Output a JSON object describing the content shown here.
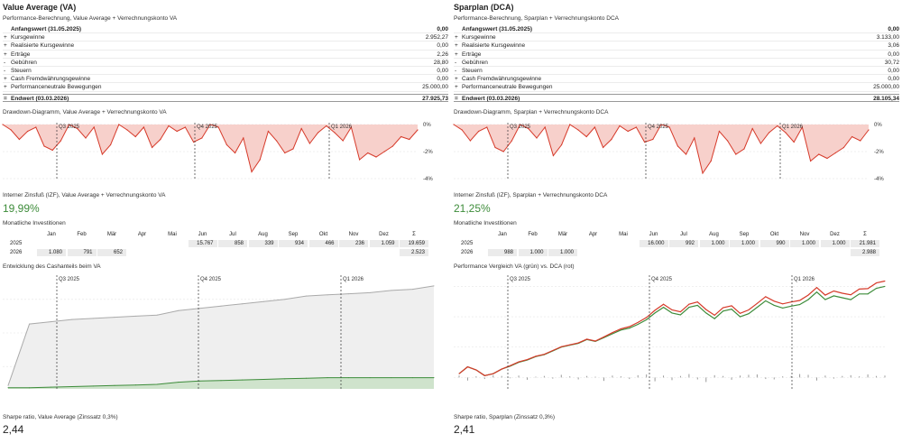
{
  "panels": [
    {
      "title": "Value Average (VA)",
      "perf_title": "Performance-Berechnung, Value Average + Verrechnungskonto VA",
      "start": {
        "label": "Anfangswert (31.05.2025)",
        "value": "0,00"
      },
      "rows": [
        {
          "op": "+",
          "label": "Kursgewinne",
          "value": "2.952,27"
        },
        {
          "op": "+",
          "label": "Realisierte Kursgewinne",
          "value": "0,00"
        },
        {
          "op": "+",
          "label": "Erträge",
          "value": "2,26"
        },
        {
          "op": "-",
          "label": "Gebühren",
          "value": "28,80"
        },
        {
          "op": "-",
          "label": "Steuern",
          "value": "0,00"
        },
        {
          "op": "+",
          "label": "Cash Fremdwährungsgewinne",
          "value": "0,00"
        },
        {
          "op": "+",
          "label": "Performanceneutrale Bewegungen",
          "value": "25.000,00"
        }
      ],
      "end": {
        "op": "=",
        "label": "Endwert (03.03.2026)",
        "value": "27.925,73"
      },
      "drawdown_title": "Drawdown-Diagramm, Value Average + Verrechnungskonto VA",
      "irr_title": "Interner Zinsfuß (IZF), Value Average + Verrechnungskonto VA",
      "irr_value": "19,99%",
      "monthly_title": "Monatliche Investitionen",
      "monthly": {
        "months": [
          "Jan",
          "Feb",
          "Mär",
          "Apr",
          "Mai",
          "Jun",
          "Jul",
          "Aug",
          "Sep",
          "Okt",
          "Nov",
          "Dez",
          "Σ"
        ],
        "rows": [
          {
            "year": "2025",
            "values": [
              "",
              "",
              "",
              "",
              "",
              "15.767",
              "858",
              "339",
              "934",
              "466",
              "236",
              "1.059",
              "19.659"
            ]
          },
          {
            "year": "2026",
            "values": [
              "1.080",
              "791",
              "652",
              "",
              "",
              "",
              "",
              "",
              "",
              "",
              "",
              "",
              "2.523"
            ]
          }
        ]
      },
      "second_chart_title": "Entwicklung des Cashanteils beim VA",
      "sharpe_title": "Sharpe ratio, Value Average (Zinssatz 0,3%)",
      "sharpe_value": "2,44"
    },
    {
      "title": "Sparplan (DCA)",
      "perf_title": "Performance-Berechnung, Sparplan + Verrechnungskonto DCA",
      "start": {
        "label": "Anfangswert (31.05.2025)",
        "value": "0,00"
      },
      "rows": [
        {
          "op": "+",
          "label": "Kursgewinne",
          "value": "3.133,00"
        },
        {
          "op": "+",
          "label": "Realisierte Kursgewinne",
          "value": "3,06"
        },
        {
          "op": "+",
          "label": "Erträge",
          "value": "0,00"
        },
        {
          "op": "-",
          "label": "Gebühren",
          "value": "30,72"
        },
        {
          "op": "-",
          "label": "Steuern",
          "value": "0,00"
        },
        {
          "op": "+",
          "label": "Cash Fremdwährungsgewinne",
          "value": "0,00"
        },
        {
          "op": "+",
          "label": "Performanceneutrale Bewegungen",
          "value": "25.000,00"
        }
      ],
      "end": {
        "op": "=",
        "label": "Endwert (03.03.2026)",
        "value": "28.105,34"
      },
      "drawdown_title": "Drawdown-Diagramm, Sparplan + Verrechnungskonto DCA",
      "irr_title": "Interner Zinsfuß (IZF), Sparplan + Verrechnungskonto DCA",
      "irr_value": "21,25%",
      "monthly_title": "Monatliche Investitionen",
      "monthly": {
        "months": [
          "Jan",
          "Feb",
          "Mär",
          "Apr",
          "Mai",
          "Jun",
          "Jul",
          "Aug",
          "Sep",
          "Okt",
          "Nov",
          "Dez",
          "Σ"
        ],
        "rows": [
          {
            "year": "2025",
            "values": [
              "",
              "",
              "",
              "",
              "",
              "16.000",
              "992",
              "1.000",
              "1.000",
              "990",
              "1.000",
              "1.000",
              "21.981"
            ]
          },
          {
            "year": "2026",
            "values": [
              "988",
              "1.000",
              "1.000",
              "",
              "",
              "",
              "",
              "",
              "",
              "",
              "",
              "",
              "2.988"
            ]
          }
        ]
      },
      "second_chart_title": "Performance Vergleich VA (grün) vs. DCA (rot)",
      "sharpe_title": "Sharpe ratio, Sparplan (Zinssatz 0,3%)",
      "sharpe_value": "2,41"
    }
  ],
  "chart_data": [
    {
      "type": "area",
      "title": "Drawdown-Diagramm, Value Average + Verrechnungskonto VA",
      "quarters": [
        "Q3 2025",
        "Q4 2025",
        "Q1 2026"
      ],
      "y_ticks": [
        "0%",
        "-2%",
        "-4%"
      ],
      "ylim": [
        -4,
        0
      ],
      "x": [
        0,
        1,
        2,
        3,
        4,
        5,
        6,
        7,
        8,
        9,
        10,
        11,
        12,
        13,
        14,
        15,
        16,
        17,
        18,
        19,
        20,
        21,
        22,
        23,
        24,
        25,
        26,
        27,
        28,
        29,
        30,
        31,
        32,
        33,
        34,
        35,
        36,
        37,
        38,
        39,
        40,
        41,
        42,
        43,
        44,
        45,
        46,
        47,
        48,
        49,
        50
      ],
      "values": [
        0,
        -0.4,
        -1.1,
        -0.5,
        -0.2,
        -1.6,
        -1.9,
        -1.2,
        0,
        -0.3,
        -1.0,
        -0.2,
        -2.2,
        -1.5,
        0,
        -0.4,
        -0.9,
        -0.2,
        -1.7,
        -1.1,
        -0.1,
        -0.5,
        -0.2,
        -1.3,
        -1.0,
        0,
        -0.2,
        -1.5,
        -2.1,
        -1.0,
        -3.5,
        -2.6,
        -0.5,
        -1.2,
        -2.1,
        -1.8,
        -0.3,
        -1.4,
        -0.6,
        -0.1,
        -0.6,
        -1.2,
        -0.2,
        -2.6,
        -2.1,
        -2.4,
        -2.0,
        -1.6,
        -0.9,
        -1.1,
        -0.4
      ],
      "color": "#d63a2a",
      "fill": "#f7d0cb"
    },
    {
      "type": "area",
      "title": "Drawdown-Diagramm, Sparplan + Verrechnungskonto DCA",
      "quarters": [
        "Q3 2025",
        "Q4 2025",
        "Q1 2026"
      ],
      "y_ticks": [
        "0%",
        "-2%",
        "-4%"
      ],
      "ylim": [
        -4,
        0
      ],
      "x": [
        0,
        1,
        2,
        3,
        4,
        5,
        6,
        7,
        8,
        9,
        10,
        11,
        12,
        13,
        14,
        15,
        16,
        17,
        18,
        19,
        20,
        21,
        22,
        23,
        24,
        25,
        26,
        27,
        28,
        29,
        30,
        31,
        32,
        33,
        34,
        35,
        36,
        37,
        38,
        39,
        40,
        41,
        42,
        43,
        44,
        45,
        46,
        47,
        48,
        49,
        50
      ],
      "values": [
        0,
        -0.4,
        -1.2,
        -0.5,
        -0.2,
        -1.7,
        -2.0,
        -1.2,
        0,
        -0.3,
        -1.0,
        -0.2,
        -2.3,
        -1.5,
        0,
        -0.4,
        -0.9,
        -0.2,
        -1.7,
        -1.1,
        -0.1,
        -0.5,
        -0.2,
        -1.3,
        -1.1,
        0,
        -0.2,
        -1.6,
        -2.2,
        -1.0,
        -3.6,
        -2.7,
        -0.5,
        -1.2,
        -2.2,
        -1.8,
        -0.3,
        -1.4,
        -0.6,
        -0.1,
        -0.6,
        -1.3,
        -0.2,
        -2.7,
        -2.2,
        -2.5,
        -2.1,
        -1.7,
        -0.9,
        -1.2,
        -0.4
      ],
      "color": "#d63a2a",
      "fill": "#f7d0cb"
    },
    {
      "type": "area",
      "title": "Entwicklung des Cashanteils beim VA",
      "quarters": [
        "Q3 2025",
        "Q4 2025",
        "Q1 2026"
      ],
      "x": [
        0,
        1,
        2,
        3,
        4,
        5,
        6,
        7,
        8,
        9,
        10,
        11,
        12,
        13,
        14,
        15,
        16,
        17,
        18,
        19,
        20
      ],
      "series": [
        {
          "values": [
            3,
            58,
            60,
            62,
            63,
            64,
            65,
            66,
            70,
            72,
            74,
            76,
            78,
            80,
            83,
            84,
            85,
            86,
            88,
            89,
            92
          ],
          "color": "#aaaaaa",
          "fill": "#efefef"
        },
        {
          "values": [
            1,
            1,
            1.5,
            2,
            2.5,
            3,
            3.5,
            4,
            6,
            7,
            7.5,
            8,
            8.5,
            9,
            9.5,
            10,
            10,
            10,
            10,
            10,
            10
          ],
          "color": "#3d8c3a",
          "fill": "#cfe3cc"
        }
      ],
      "ylim": [
        0,
        100
      ]
    },
    {
      "type": "line",
      "title": "Performance Vergleich VA (grün) vs. DCA (rot)",
      "quarters": [
        "Q3 2025",
        "Q4 2025",
        "Q1 2026"
      ],
      "x": [
        0,
        1,
        2,
        3,
        4,
        5,
        6,
        7,
        8,
        9,
        10,
        11,
        12,
        13,
        14,
        15,
        16,
        17,
        18,
        19,
        20,
        21,
        22,
        23,
        24,
        25,
        26,
        27,
        28,
        29,
        30,
        31,
        32,
        33,
        34,
        35,
        36,
        37,
        38,
        39,
        40,
        41,
        42,
        43,
        44,
        45,
        46,
        47,
        48,
        49,
        50
      ],
      "series": [
        {
          "name": "VA",
          "color": "#3d8c3a",
          "values": [
            1.0,
            2.8,
            2.0,
            0.5,
            1.0,
            2.2,
            3.0,
            4.0,
            4.6,
            5.5,
            6.0,
            7.0,
            8.0,
            8.5,
            9.0,
            10.0,
            9.5,
            10.5,
            11.5,
            12.5,
            13.0,
            14.0,
            15.2,
            17.0,
            18.5,
            17.0,
            16.5,
            18.5,
            19.0,
            17.0,
            15.5,
            17.5,
            18.0,
            16.0,
            16.8,
            18.5,
            20.2,
            19.0,
            18.3,
            18.8,
            19.2,
            20.5,
            22.5,
            20.5,
            21.5,
            21.0,
            20.5,
            22.0,
            22.0,
            23.5,
            24.0
          ]
        },
        {
          "name": "DCA",
          "color": "#d63a2a",
          "values": [
            1.0,
            2.8,
            2.0,
            0.5,
            1.0,
            2.2,
            3.1,
            4.1,
            4.7,
            5.6,
            6.1,
            7.1,
            8.1,
            8.6,
            9.1,
            10.1,
            9.6,
            10.7,
            11.8,
            12.8,
            13.4,
            14.5,
            15.8,
            17.7,
            19.3,
            17.8,
            17.3,
            19.3,
            19.9,
            17.9,
            16.4,
            18.4,
            18.9,
            16.9,
            17.8,
            19.5,
            21.3,
            20.1,
            19.4,
            19.9,
            20.3,
            21.7,
            23.7,
            21.7,
            22.8,
            22.2,
            21.8,
            23.3,
            23.4,
            24.9,
            25.4
          ]
        }
      ],
      "bars": [
        0.5,
        -0.8,
        0.3,
        -0.4,
        0.6,
        0.4,
        -0.2,
        0.5,
        -0.6,
        0.2,
        0.4,
        -0.3,
        0.7,
        0.3,
        -0.5,
        0.4,
        0.2,
        -0.9,
        0.5,
        0.3,
        -0.4,
        0.6,
        0.8,
        -1.0,
        0.5,
        -0.7,
        0.4,
        0.9,
        -0.5,
        -1.2,
        0.6,
        0.4,
        -0.6,
        0.5,
        0.7,
        0.8,
        -0.4,
        -0.5,
        0.3,
        0.4,
        0.9,
        0.7,
        -0.8,
        0.5,
        -0.3,
        0.4,
        0.6,
        0.3,
        0.8,
        0.4,
        0.5
      ],
      "bar_color": "#999999",
      "ylim": [
        -3,
        26
      ]
    }
  ]
}
